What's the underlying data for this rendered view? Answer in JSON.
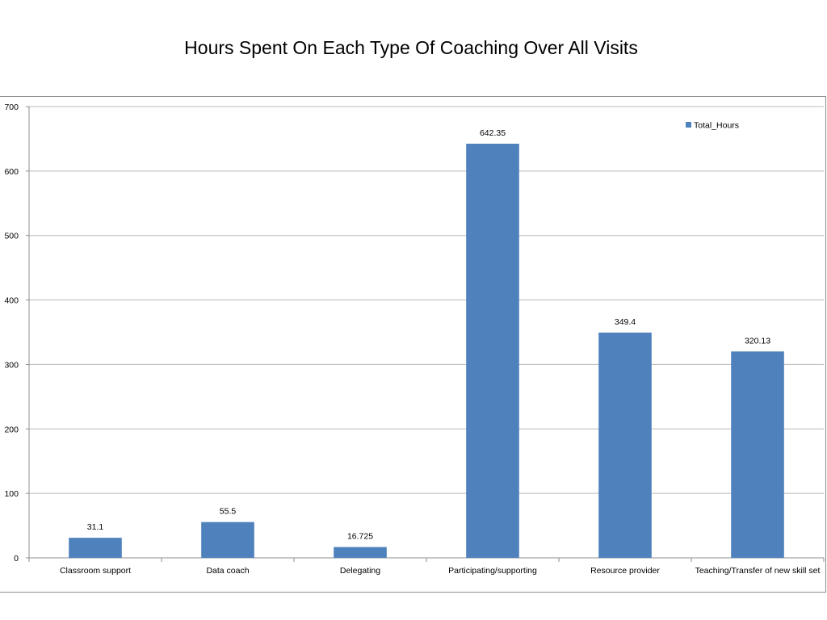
{
  "chart_data": {
    "type": "bar",
    "title": "Hours Spent On Each Type Of Coaching Over All Visits",
    "categories": [
      "Classroom support",
      "Data coach",
      "Delegating",
      "Participating/supporting",
      "Resource provider",
      "Teaching/Transfer of new skill set"
    ],
    "series": [
      {
        "name": "Total_Hours",
        "values": [
          31.1,
          55.5,
          16.725,
          642.35,
          349.4,
          320.13
        ],
        "labels": [
          "31.1",
          "55.5",
          "16.725",
          "642.35",
          "349.4",
          "320.13"
        ],
        "color": "#4f81bd"
      }
    ],
    "xlabel": "",
    "ylabel": "",
    "ylim": [
      0,
      700
    ],
    "yticks": [
      0,
      100,
      200,
      300,
      400,
      500,
      600,
      700
    ],
    "grid": true,
    "legend": "top-right"
  }
}
